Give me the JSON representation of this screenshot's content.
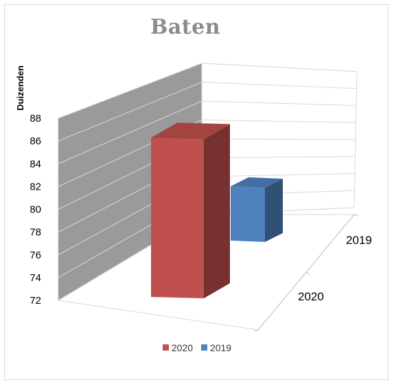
{
  "chart_data": {
    "type": "bar",
    "title": "Baten",
    "ylabel": "Duizenden",
    "xlabel": "",
    "categories": [
      "2020",
      "2019"
    ],
    "series": [
      {
        "name": "2020",
        "values": [
          86.2,
          null
        ],
        "color": "#c0504d"
      },
      {
        "name": "2019",
        "values": [
          null,
          81.3
        ],
        "color": "#4f81bd"
      }
    ],
    "ylim": [
      72,
      88
    ],
    "yticks": [
      "72",
      "74",
      "76",
      "78",
      "80",
      "82",
      "84",
      "86",
      "88"
    ],
    "legend": {
      "position": "bottom",
      "entries": [
        "2020",
        "2019"
      ]
    },
    "grid": true,
    "projection": "3d"
  },
  "colors": {
    "wall_side": "#9a9a9a",
    "gridline": "#d9d9d9",
    "title": "#8c8c8c"
  }
}
